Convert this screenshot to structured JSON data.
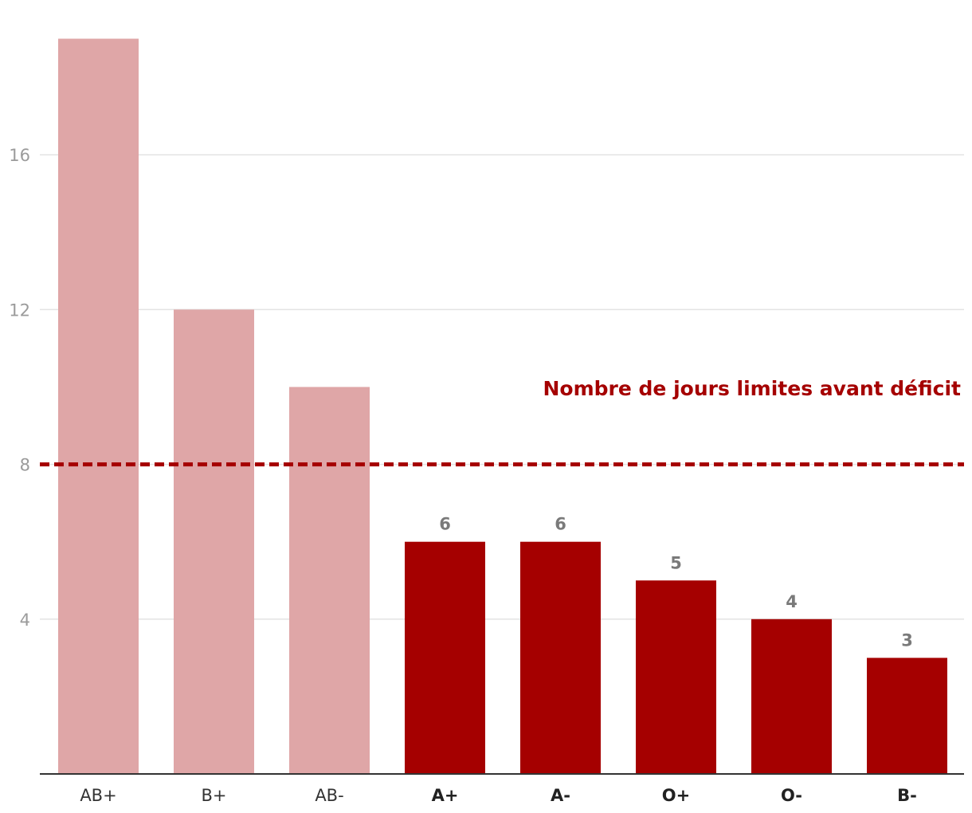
{
  "chart_data": {
    "type": "bar",
    "categories": [
      "AB+",
      "B+",
      "AB-",
      "A+",
      "A-",
      "O+",
      "O-",
      "B-"
    ],
    "values": [
      19,
      12,
      10,
      6,
      6,
      5,
      4,
      3
    ],
    "data_labels": [
      "",
      "",
      "",
      "6",
      "6",
      "5",
      "4",
      "3"
    ],
    "highlighted": [
      false,
      false,
      false,
      true,
      true,
      true,
      true,
      true
    ],
    "yticks": [
      4,
      8,
      12,
      16
    ],
    "ytick_labels": [
      "4",
      "8",
      "12",
      "16"
    ],
    "ylim": [
      0,
      19
    ],
    "grid": "horizontal",
    "reference_line": {
      "value": 8,
      "label": "Nombre de jours limites avant déficit",
      "style": "dashed"
    },
    "colors": {
      "above": "#dfa6a7",
      "below": "#a50000",
      "reference": "#a50000",
      "grid": "#e3e3e3",
      "axis": "#333333"
    },
    "title": "",
    "xlabel": "",
    "ylabel": ""
  }
}
